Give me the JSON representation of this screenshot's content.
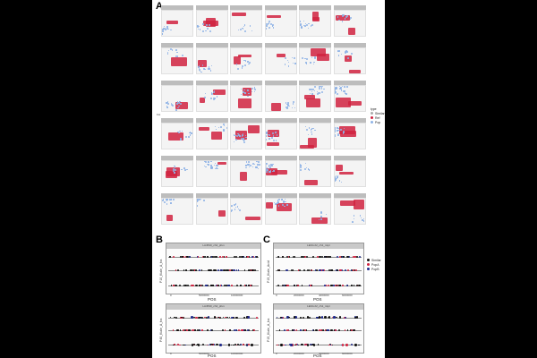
{
  "panel_labels": {
    "a": "A",
    "b": "B",
    "c": "C"
  },
  "panel_a": {
    "corner_title": "Sel_scan",
    "y_axis_label": "Fst",
    "legend_title": "type",
    "legend_items": [
      "Similar",
      "Ref",
      "Pop"
    ]
  },
  "panel_b": {
    "top": {
      "strip": "LA4530_ch4_pfun",
      "ylabel": "P10_Kiale_A_tra",
      "xlabel": "POS",
      "ticks": [
        "0",
        "5000000",
        "10000000"
      ]
    },
    "bottom": {
      "strip": "LA4530_ch4_pfun",
      "ylabel": "P40_Kiale_A_tra",
      "xlabel": "POS",
      "ticks": [
        "0",
        "5000000",
        "10000000"
      ]
    }
  },
  "panel_c": {
    "top": {
      "strip": "LEKA 22_ch1_mtpr",
      "ylabel": "P15_Kiale_Acid",
      "xlabel": "POS",
      "ticks": [
        "0",
        "2000000",
        "4000000",
        "6000000"
      ]
    },
    "bottom": {
      "strip": "LEKA 22_ch1_mtpr",
      "ylabel": "P15_Kiale_A_tra",
      "xlabel": "POS",
      "ticks": [
        "0",
        "2000000",
        "4000000",
        "6000000"
      ]
    }
  },
  "legend_bc": {
    "items": [
      "Similar",
      "PopA",
      "PopB"
    ]
  },
  "colors": {
    "red": "#d0223f",
    "blue": "#8fb3e6",
    "navy": "#1f2a8c",
    "black": "#111111"
  }
}
